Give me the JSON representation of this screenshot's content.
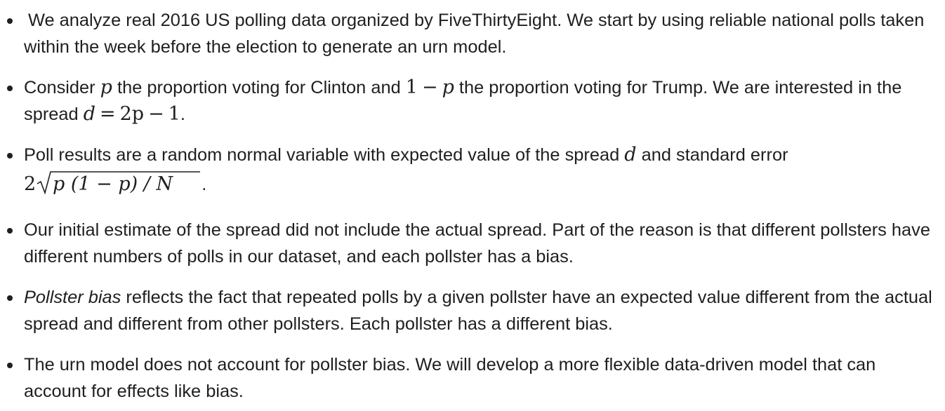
{
  "bullets": [
    {
      "text": "We analyze real 2016 US polling data organized by FiveThirtyEight. We start by using reliable national polls taken within the week before the election to generate an urn model."
    },
    {
      "pre": "Consider ",
      "m1": "p",
      "mid1": " the proportion voting for Clinton and ",
      "m2a": "1",
      "m2op": "−",
      "m2b": "p",
      "mid2": " the proportion voting for Trump. We are interested in the spread ",
      "m3a": "d",
      "m3op": "=",
      "m3b": "2p",
      "m3op2": "−",
      "m3c": "1",
      "post": "."
    },
    {
      "pre": "Poll results are a random normal variable with expected value of the spread ",
      "m1": "d",
      "mid": " and standard error ",
      "coef": "2",
      "radicand": "p (1 − p) / N",
      "post": "."
    },
    {
      "text": "Our initial estimate of the spread did not include the actual spread. Part of the reason is that different pollsters have different numbers of polls in our dataset, and each pollster has a bias."
    },
    {
      "em": "Pollster bias",
      "text": " reflects the fact that repeated polls by a given pollster have an expected value different from the actual spread and different from other pollsters. Each pollster has a different bias."
    },
    {
      "text": "The urn model does not account for pollster bias. We will develop a more flexible data-driven model that can account for effects like bias."
    }
  ]
}
